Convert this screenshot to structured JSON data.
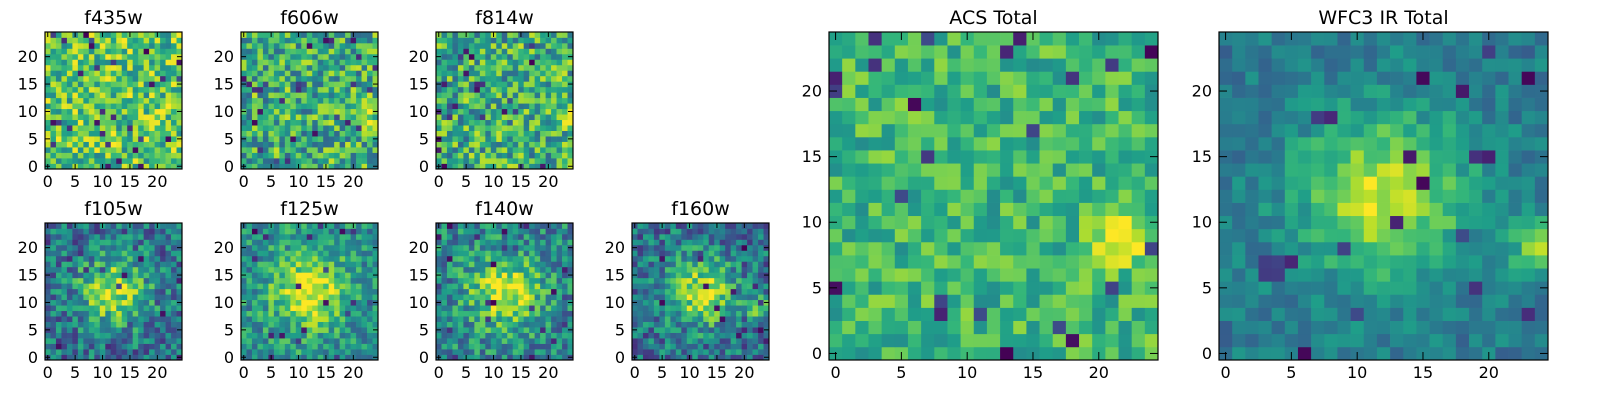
{
  "figure": {
    "colormap": "viridis",
    "colormap_stops": [
      "#440154",
      "#482878",
      "#3e4989",
      "#31688e",
      "#26828e",
      "#1f9e89",
      "#35b779",
      "#6ece58",
      "#b5de2b",
      "#fde725"
    ],
    "background": "#ffffff"
  },
  "chart_data": [
    {
      "type": "heatmap",
      "title": "f435w",
      "grid_size": 25,
      "xlim": [
        0,
        24
      ],
      "ylim": [
        0,
        24
      ],
      "xticks": [
        0,
        5,
        10,
        15,
        20
      ],
      "yticks": [
        0,
        5,
        10,
        15,
        20
      ],
      "cmap": "viridis",
      "profile": "noise",
      "level": 0.72,
      "noise": 0.28,
      "seed": 11
    },
    {
      "type": "heatmap",
      "title": "f606w",
      "grid_size": 25,
      "xlim": [
        0,
        24
      ],
      "ylim": [
        0,
        24
      ],
      "xticks": [
        0,
        5,
        10,
        15,
        20
      ],
      "yticks": [
        0,
        5,
        10,
        15,
        20
      ],
      "cmap": "viridis",
      "profile": "noise",
      "level": 0.62,
      "noise": 0.3,
      "seed": 23,
      "hotspot": [
        22,
        9
      ]
    },
    {
      "type": "heatmap",
      "title": "f814w",
      "grid_size": 25,
      "xlim": [
        0,
        24
      ],
      "ylim": [
        0,
        24
      ],
      "xticks": [
        0,
        5,
        10,
        15,
        20
      ],
      "yticks": [
        0,
        5,
        10,
        15,
        20
      ],
      "cmap": "viridis",
      "profile": "noise",
      "level": 0.62,
      "noise": 0.3,
      "seed": 37,
      "hotspot": [
        23,
        9
      ]
    },
    {
      "type": "heatmap",
      "title": "f105w",
      "grid_size": 25,
      "xlim": [
        0,
        24
      ],
      "ylim": [
        0,
        24
      ],
      "xticks": [
        0,
        5,
        10,
        15,
        20
      ],
      "yticks": [
        0,
        5,
        10,
        15,
        20
      ],
      "cmap": "viridis",
      "profile": "blob",
      "level": 0.5,
      "noise": 0.25,
      "seed": 41,
      "peak": [
        12,
        12
      ]
    },
    {
      "type": "heatmap",
      "title": "f125w",
      "grid_size": 25,
      "xlim": [
        0,
        24
      ],
      "ylim": [
        0,
        24
      ],
      "xticks": [
        0,
        5,
        10,
        15,
        20
      ],
      "yticks": [
        0,
        5,
        10,
        15,
        20
      ],
      "cmap": "viridis",
      "profile": "blob",
      "level": 0.68,
      "noise": 0.22,
      "seed": 53,
      "peak": [
        12,
        12
      ]
    },
    {
      "type": "heatmap",
      "title": "f140w",
      "grid_size": 25,
      "xlim": [
        0,
        24
      ],
      "ylim": [
        0,
        24
      ],
      "xticks": [
        0,
        5,
        10,
        15,
        20
      ],
      "yticks": [
        0,
        5,
        10,
        15,
        20
      ],
      "cmap": "viridis",
      "profile": "blob",
      "level": 0.62,
      "noise": 0.24,
      "seed": 67,
      "peak": [
        12,
        12
      ]
    },
    {
      "type": "heatmap",
      "title": "f160w",
      "grid_size": 25,
      "xlim": [
        0,
        24
      ],
      "ylim": [
        0,
        24
      ],
      "xticks": [
        0,
        5,
        10,
        15,
        20
      ],
      "yticks": [
        0,
        5,
        10,
        15,
        20
      ],
      "cmap": "viridis",
      "profile": "blob",
      "level": 0.5,
      "noise": 0.24,
      "seed": 79,
      "peak": [
        12,
        12
      ],
      "hotspot": [
        23,
        9
      ]
    },
    {
      "type": "heatmap",
      "title": "ACS Total",
      "grid_size": 25,
      "xlim": [
        0,
        24
      ],
      "ylim": [
        0,
        24
      ],
      "xticks": [
        0,
        5,
        10,
        15,
        20
      ],
      "yticks": [
        0,
        5,
        10,
        15,
        20
      ],
      "cmap": "viridis",
      "profile": "noise",
      "level": 0.66,
      "noise": 0.18,
      "seed": 97,
      "hotspot": [
        22,
        9
      ]
    },
    {
      "type": "heatmap",
      "title": "WFC3 IR Total",
      "grid_size": 25,
      "xlim": [
        0,
        24
      ],
      "ylim": [
        0,
        24
      ],
      "xticks": [
        0,
        5,
        10,
        15,
        20
      ],
      "yticks": [
        0,
        5,
        10,
        15,
        20
      ],
      "cmap": "viridis",
      "profile": "blob",
      "level": 0.55,
      "noise": 0.12,
      "seed": 101,
      "peak": [
        12,
        12
      ],
      "hotspot": [
        24,
        8
      ]
    }
  ]
}
